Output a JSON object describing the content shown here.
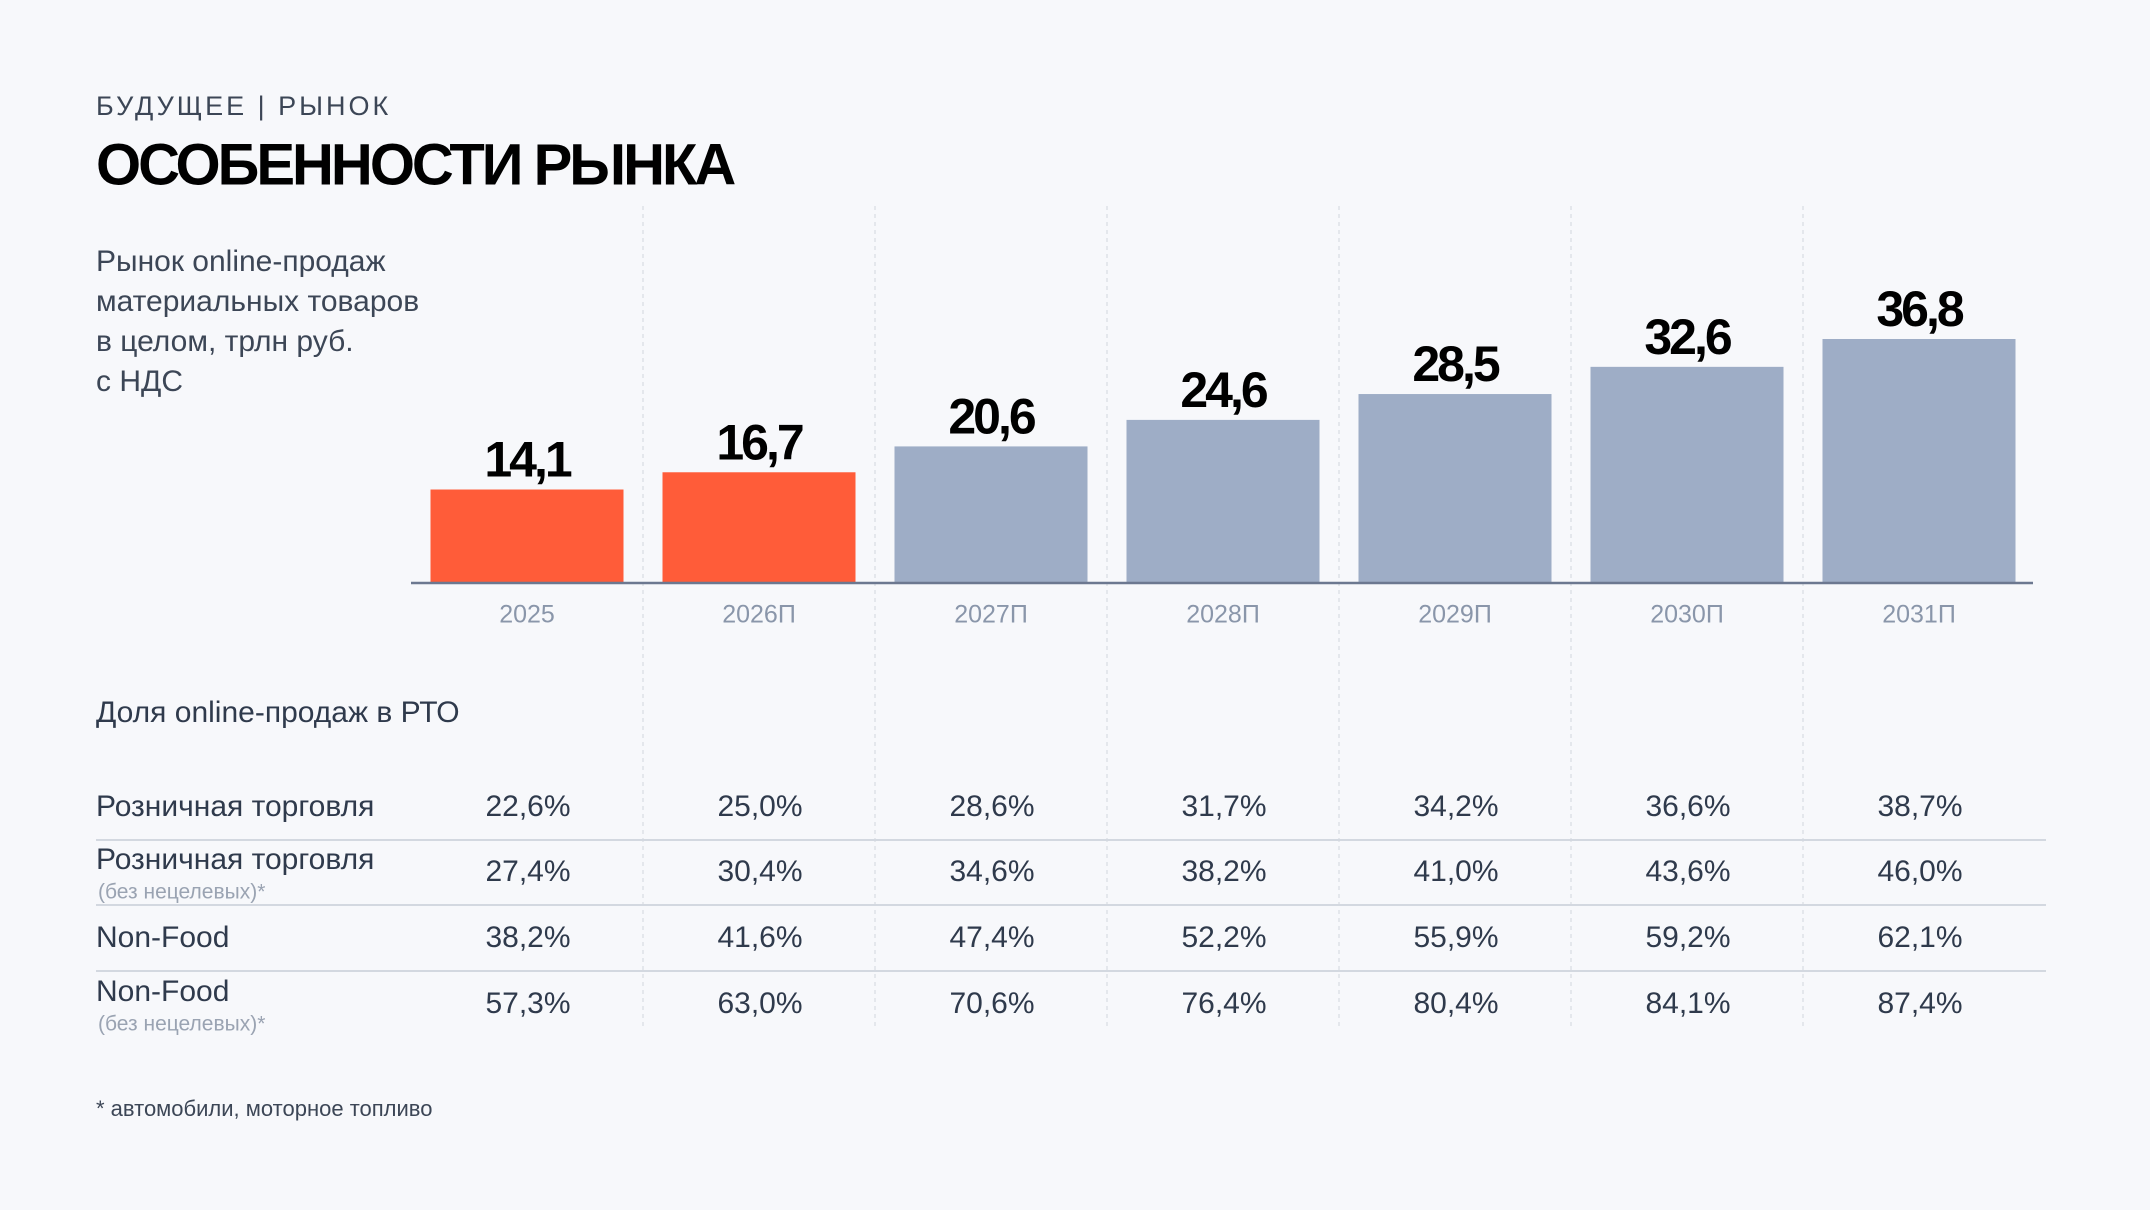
{
  "header": {
    "kicker": "БУДУЩЕЕ | РЫНОК",
    "title": "ОСОБЕННОСТИ РЫНКА"
  },
  "chart_data": {
    "type": "bar",
    "title": [
      "Рынок online-продаж",
      "материальных товаров",
      "в целом, трлн руб.",
      "с НДС"
    ],
    "categories": [
      "2025",
      "2026П",
      "2027П",
      "2028П",
      "2029П",
      "2030П",
      "2031П"
    ],
    "values": [
      14.1,
      16.7,
      20.6,
      24.6,
      28.5,
      32.6,
      36.8
    ],
    "value_labels": [
      "14,1",
      "16,7",
      "20,6",
      "24,6",
      "28,5",
      "32,6",
      "36,8"
    ],
    "colors": [
      "#ff5c39",
      "#ff5c39",
      "#9eadc6",
      "#9eadc6",
      "#9eadc6",
      "#9eadc6",
      "#9eadc6"
    ]
  },
  "table": {
    "title": "Доля online-продаж в РТО",
    "rows": [
      {
        "label": "Розничная торговля",
        "values": [
          "22,6%",
          "25,0%",
          "28,6%",
          "31,7%",
          "34,2%",
          "36,6%",
          "38,7%"
        ]
      },
      {
        "label": "Розничная торговля",
        "note": "(без нецелевых)*",
        "values": [
          "27,4%",
          "30,4%",
          "34,6%",
          "38,2%",
          "41,0%",
          "43,6%",
          "46,0%"
        ]
      },
      {
        "label": "Non-Food",
        "values": [
          "38,2%",
          "41,6%",
          "47,4%",
          "52,2%",
          "55,9%",
          "59,2%",
          "62,1%"
        ]
      },
      {
        "label": "Non-Food",
        "note": "(без нецелевых)*",
        "values": [
          "57,3%",
          "63,0%",
          "70,6%",
          "76,4%",
          "80,4%",
          "84,1%",
          "87,4%"
        ]
      }
    ]
  },
  "footnote": "* автомобили, моторное топливо"
}
